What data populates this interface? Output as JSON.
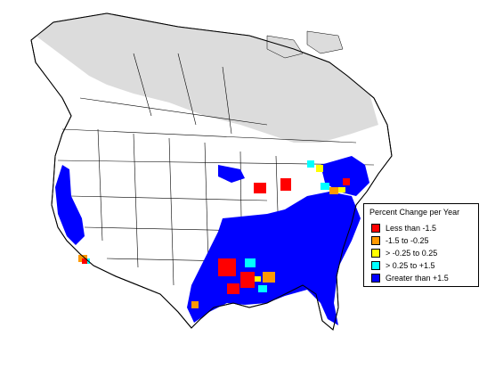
{
  "legend": {
    "title": "Percent Change per Year",
    "items": [
      {
        "label": "Less than -1.5",
        "color": "#ff0000"
      },
      {
        "label": "-1.5 to -0.25",
        "color": "#ff9900"
      },
      {
        "label": "> -0.25 to 0.25",
        "color": "#ffff00"
      },
      {
        "label": "> 0.25 to +1.5",
        "color": "#00ffff"
      },
      {
        "label": "Greater than +1.5",
        "color": "#0000ff"
      }
    ]
  },
  "map_colors": {
    "no_data_region": "#dcdcdc",
    "land": "#ffffff",
    "borders": "#000000"
  }
}
